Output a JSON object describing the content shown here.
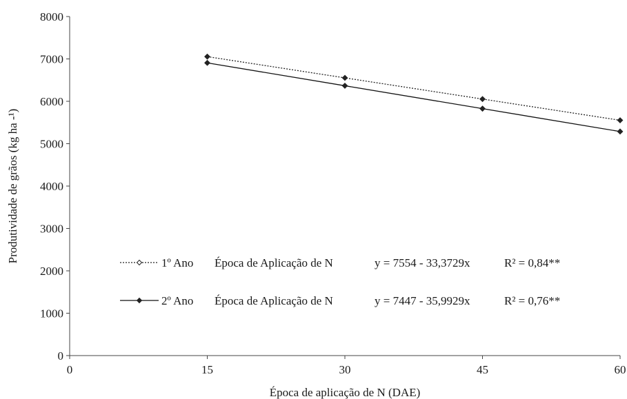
{
  "chart_data": {
    "type": "line",
    "title": "",
    "xlabel": "Época de aplicação de N (DAE)",
    "ylabel": "Produtividade de grãos (kg ha -¹)",
    "xlim": [
      0,
      60
    ],
    "ylim": [
      0,
      8000
    ],
    "x_ticks": [
      "0",
      "15",
      "30",
      "45",
      "60"
    ],
    "y_ticks": [
      "0",
      "1000",
      "2000",
      "3000",
      "4000",
      "5000",
      "6000",
      "7000",
      "8000"
    ],
    "grid": false,
    "legend_position": "bottom-left",
    "x": [
      15,
      30,
      45,
      60
    ],
    "series": [
      {
        "name": "1º Ano",
        "values": [
          7054,
          6553,
          6053,
          5552
        ],
        "line_style": "dotted",
        "marker": "diamond",
        "color": "#222222",
        "legend": {
          "name": "1º Ano",
          "group": "Época de Aplicação de N",
          "equation": "y = 7554 - 33,3729x",
          "r2": "R² = 0,84**"
        }
      },
      {
        "name": "2º Ano",
        "values": [
          6907,
          6367,
          5827,
          5287
        ],
        "line_style": "solid",
        "marker": "diamond",
        "color": "#111111",
        "legend": {
          "name": "2º Ano",
          "group": "Época de Aplicação de N",
          "equation": "y = 7447 - 35,9929x",
          "r2": "R² = 0,76**"
        }
      }
    ]
  }
}
